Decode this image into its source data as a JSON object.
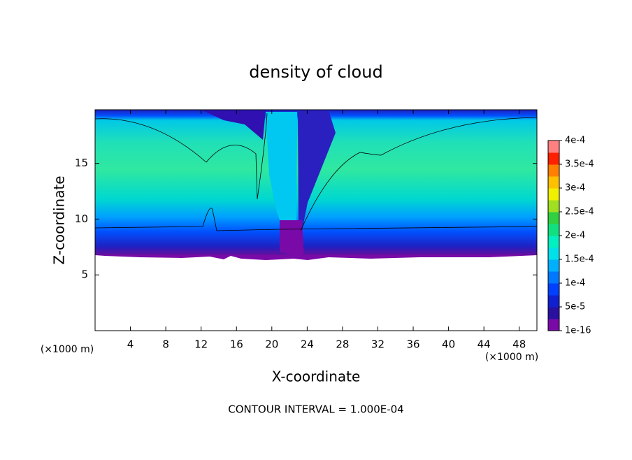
{
  "chart_data": {
    "type": "contour",
    "title": "density of cloud",
    "xlabel": "X-coordinate",
    "ylabel": "Z-coordinate",
    "x_unit_label": "(×1000 m)",
    "footnote": "CONTOUR INTERVAL = 1.000E-04",
    "xlim": [
      0,
      50
    ],
    "ylim": [
      0,
      19.8
    ],
    "xticks": [
      4,
      8,
      12,
      16,
      20,
      24,
      28,
      32,
      36,
      40,
      44,
      48
    ],
    "yticks": [
      5,
      10,
      15
    ],
    "colorbar": {
      "lim": [
        1e-16,
        0.0004
      ],
      "ticks": [
        {
          "value": 1e-16,
          "label": "1e-16"
        },
        {
          "value": 5e-05,
          "label": "5e-5"
        },
        {
          "value": 0.0001,
          "label": "1e-4"
        },
        {
          "value": 0.00015,
          "label": "1.5e-4"
        },
        {
          "value": 0.0002,
          "label": "2e-4"
        },
        {
          "value": 0.00025,
          "label": "2.5e-4"
        },
        {
          "value": 0.0003,
          "label": "3e-4"
        },
        {
          "value": 0.00035,
          "label": "3.5e-4"
        },
        {
          "value": 0.0004,
          "label": "4e-4"
        }
      ],
      "colors": [
        "#7a0aa8",
        "#2a10a0",
        "#1020d0",
        "#0040ff",
        "#0078ff",
        "#00b0ff",
        "#00e0e8",
        "#00f0c0",
        "#10e080",
        "#30d040",
        "#a0e020",
        "#f0f000",
        "#ffc000",
        "#ff8000",
        "#ff2000",
        "#ff8080"
      ]
    }
  }
}
